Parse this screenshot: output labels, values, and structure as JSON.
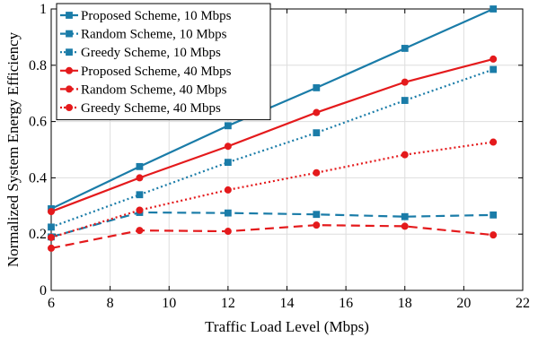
{
  "chart_data": {
    "type": "line",
    "xlabel": "Traffic Load Level (Mbps)",
    "ylabel": "Normalized System Energy Efficiency",
    "xlim": [
      6,
      22
    ],
    "ylim": [
      0,
      1
    ],
    "xticks": [
      "6",
      "8",
      "10",
      "12",
      "14",
      "16",
      "18",
      "20",
      "22"
    ],
    "yticks": [
      "0",
      "0.2",
      "0.4",
      "0.6",
      "0.8",
      "1"
    ],
    "grid": true,
    "legend_position": "top-left",
    "x": [
      6,
      9,
      12,
      15,
      18,
      21
    ],
    "series": [
      {
        "name": "Proposed Scheme, 10 Mbps",
        "color": "#1a7ca8",
        "line": "solid",
        "marker": "square",
        "values": [
          0.29,
          0.44,
          0.585,
          0.72,
          0.86,
          1.0
        ]
      },
      {
        "name": "Random Scheme, 10 Mbps",
        "color": "#1a7ca8",
        "line": "dashed",
        "marker": "square",
        "values": [
          0.19,
          0.277,
          0.275,
          0.27,
          0.262,
          0.268
        ]
      },
      {
        "name": "Greedy Scheme, 10 Mbps",
        "color": "#1a7ca8",
        "line": "dotted",
        "marker": "square",
        "values": [
          0.225,
          0.34,
          0.455,
          0.56,
          0.675,
          0.785
        ]
      },
      {
        "name": "Proposed Scheme, 40 Mbps",
        "color": "#e41a1c",
        "line": "solid",
        "marker": "circle",
        "values": [
          0.28,
          0.4,
          0.512,
          0.632,
          0.74,
          0.822
        ]
      },
      {
        "name": "Random Scheme, 40 Mbps",
        "color": "#e41a1c",
        "line": "dashed",
        "marker": "circle",
        "values": [
          0.15,
          0.213,
          0.21,
          0.232,
          0.228,
          0.197
        ]
      },
      {
        "name": "Greedy Scheme, 40 Mbps",
        "color": "#e41a1c",
        "line": "dotted",
        "marker": "circle",
        "values": [
          0.188,
          0.285,
          0.357,
          0.418,
          0.482,
          0.527
        ]
      }
    ]
  }
}
